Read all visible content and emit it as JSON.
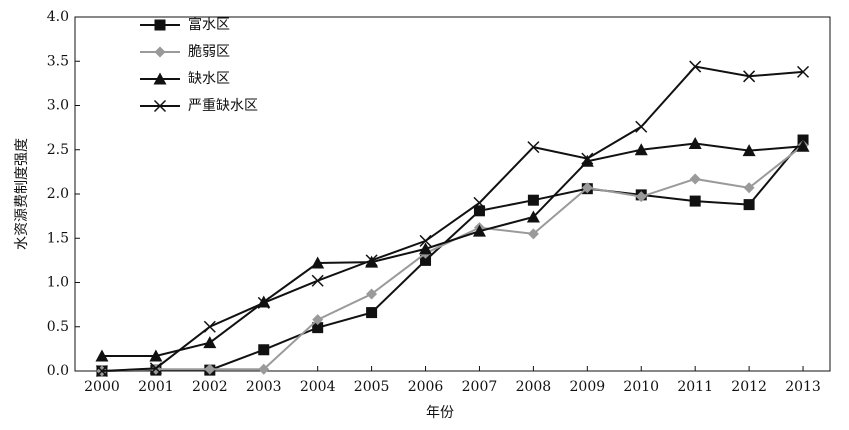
{
  "chart_data": {
    "type": "line",
    "xlabel": "年份",
    "ylabel": "水资源费制度强度",
    "categories": [
      "2000",
      "2001",
      "2002",
      "2003",
      "2004",
      "2005",
      "2006",
      "2007",
      "2008",
      "2009",
      "2010",
      "2011",
      "2012",
      "2013"
    ],
    "ylim": [
      0,
      4
    ],
    "yticks": [
      {
        "value": 0,
        "label": "0.0"
      },
      {
        "value": 0.5,
        "label": "0.5"
      },
      {
        "value": 1,
        "label": "1.0"
      },
      {
        "value": 1.5,
        "label": "1.5"
      },
      {
        "value": 2,
        "label": "2.0"
      },
      {
        "value": 2.5,
        "label": "2.5"
      },
      {
        "value": 3,
        "label": "3.0"
      },
      {
        "value": 3.5,
        "label": "3.5"
      },
      {
        "value": 4,
        "label": "4.0"
      }
    ],
    "grid": false,
    "legend": "top-left",
    "series": [
      {
        "name": "富水区",
        "color": "#111111",
        "marker": "square",
        "values": [
          0.0,
          0.01,
          0.01,
          0.24,
          0.49,
          0.66,
          1.25,
          1.81,
          1.93,
          2.06,
          1.99,
          1.92,
          1.88,
          2.61
        ]
      },
      {
        "name": "脆弱区",
        "color": "#9a9a9a",
        "marker": "diamond",
        "values": [
          0.0,
          0.02,
          0.02,
          0.02,
          0.58,
          0.87,
          1.33,
          1.62,
          1.55,
          2.07,
          1.97,
          2.17,
          2.07,
          2.55
        ]
      },
      {
        "name": "缺水区",
        "color": "#111111",
        "marker": "triangle",
        "values": [
          0.17,
          0.17,
          0.32,
          0.78,
          1.22,
          1.23,
          1.38,
          1.58,
          1.74,
          2.37,
          2.5,
          2.57,
          2.49,
          2.54
        ]
      },
      {
        "name": "严重缺水区",
        "color": "#111111",
        "marker": "x",
        "values": [
          0.0,
          0.03,
          0.5,
          0.77,
          1.02,
          1.25,
          1.47,
          1.9,
          2.53,
          2.4,
          2.76,
          3.44,
          3.33,
          3.38
        ]
      }
    ]
  }
}
